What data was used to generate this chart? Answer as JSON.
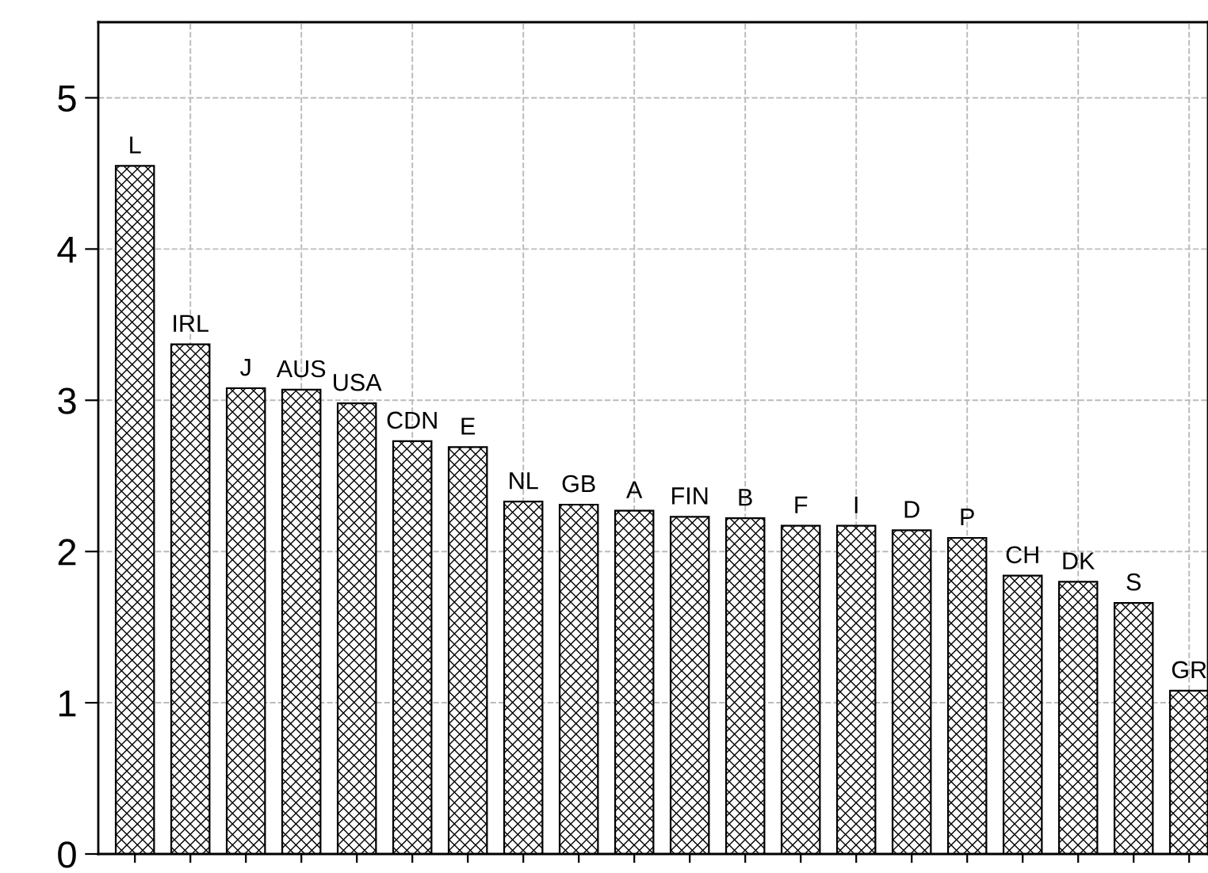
{
  "chart_data": {
    "type": "bar",
    "categories": [
      "L",
      "IRL",
      "J",
      "AUS",
      "USA",
      "CDN",
      "E",
      "NL",
      "GB",
      "A",
      "FIN",
      "B",
      "F",
      "I",
      "D",
      "P",
      "CH",
      "DK",
      "S",
      "GR"
    ],
    "values": [
      4.55,
      3.37,
      3.08,
      3.07,
      2.98,
      2.73,
      2.69,
      2.33,
      2.31,
      2.27,
      2.23,
      2.22,
      2.17,
      2.17,
      2.14,
      2.09,
      1.84,
      1.8,
      1.66,
      1.08
    ],
    "color": "#000000",
    "ylim": [
      0,
      5.5
    ],
    "yticks": [
      0,
      1,
      2,
      3,
      4,
      5
    ],
    "grid": true,
    "tick_labels": "y"
  }
}
